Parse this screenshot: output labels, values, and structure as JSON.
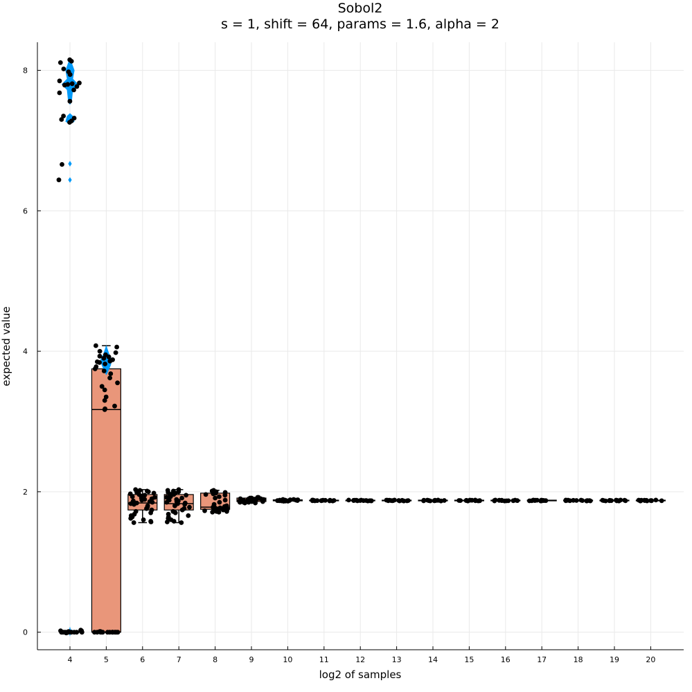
{
  "chart_data": {
    "type": "box",
    "title": "Sobol2",
    "subtitle": "s = 1, shift = 64, params = 1.6, alpha = 2",
    "xlabel": "log2 of samples",
    "ylabel": "expected value",
    "categories": [
      "4",
      "5",
      "6",
      "7",
      "8",
      "9",
      "10",
      "11",
      "12",
      "13",
      "14",
      "15",
      "16",
      "17",
      "18",
      "19",
      "20"
    ],
    "ylim": [
      -0.25,
      8.4
    ],
    "yticks": [
      0,
      2,
      4,
      6,
      8
    ],
    "grid": true,
    "legend": "none",
    "colors": {
      "box": "#e9967a",
      "violin": "#009af9",
      "points": "#000000",
      "grid": "#e9e9e9"
    },
    "boxes": [
      {
        "x": "4",
        "visible": false
      },
      {
        "x": "5",
        "q1": 0.0,
        "median": 3.17,
        "q3": 3.75,
        "whisker_low": 0.0,
        "whisker_high": 4.08
      },
      {
        "x": "6",
        "q1": 1.74,
        "median": 1.84,
        "q3": 1.96,
        "whisker_low": 1.56,
        "whisker_high": 2.03
      },
      {
        "x": "7",
        "q1": 1.74,
        "median": 1.83,
        "q3": 1.96,
        "whisker_low": 1.56,
        "whisker_high": 2.03
      },
      {
        "x": "8",
        "q1": 1.75,
        "median": 1.78,
        "q3": 1.98,
        "whisker_low": 1.71,
        "whisker_high": 2.02
      },
      {
        "x": "9",
        "q1": 1.86,
        "median": 1.88,
        "q3": 1.91,
        "whisker_low": 1.84,
        "whisker_high": 1.92
      },
      {
        "x": "10",
        "q1": 1.87,
        "median": 1.875,
        "q3": 1.885,
        "whisker_low": 1.865,
        "whisker_high": 1.89
      },
      {
        "x": "11",
        "q1": 1.87,
        "median": 1.875,
        "q3": 1.88,
        "whisker_low": 1.868,
        "whisker_high": 1.882
      },
      {
        "x": "12",
        "q1": 1.87,
        "median": 1.875,
        "q3": 1.88,
        "whisker_low": 1.868,
        "whisker_high": 1.882
      },
      {
        "x": "13",
        "q1": 1.87,
        "median": 1.875,
        "q3": 1.88,
        "whisker_low": 1.868,
        "whisker_high": 1.882
      },
      {
        "x": "14",
        "q1": 1.87,
        "median": 1.875,
        "q3": 1.88,
        "whisker_low": 1.868,
        "whisker_high": 1.882
      },
      {
        "x": "15",
        "q1": 1.87,
        "median": 1.875,
        "q3": 1.88,
        "whisker_low": 1.868,
        "whisker_high": 1.882
      },
      {
        "x": "16",
        "q1": 1.87,
        "median": 1.875,
        "q3": 1.88,
        "whisker_low": 1.868,
        "whisker_high": 1.882
      },
      {
        "x": "17",
        "q1": 1.87,
        "median": 1.875,
        "q3": 1.88,
        "whisker_low": 1.868,
        "whisker_high": 1.882
      },
      {
        "x": "18",
        "q1": 1.87,
        "median": 1.875,
        "q3": 1.88,
        "whisker_low": 1.868,
        "whisker_high": 1.882
      },
      {
        "x": "19",
        "q1": 1.87,
        "median": 1.875,
        "q3": 1.88,
        "whisker_low": 1.868,
        "whisker_high": 1.882
      },
      {
        "x": "20",
        "q1": 1.87,
        "median": 1.875,
        "q3": 1.88,
        "whisker_low": 1.868,
        "whisker_high": 1.882
      }
    ],
    "violins": [
      {
        "x": "4",
        "density": [
          [
            -0.02,
            0.05
          ],
          [
            0.0,
            0.22
          ],
          [
            0.02,
            0.3
          ],
          [
            0.04,
            0.05
          ],
          [
            6.44,
            0.12
          ],
          [
            6.67,
            0.12
          ],
          [
            7.27,
            0.3
          ],
          [
            7.35,
            0.2
          ],
          [
            7.55,
            0.12
          ],
          [
            7.72,
            0.2
          ],
          [
            7.8,
            0.55
          ],
          [
            7.88,
            0.2
          ],
          [
            8.0,
            0.3
          ],
          [
            8.12,
            0.1
          ]
        ]
      },
      {
        "x": "5",
        "density": [
          [
            3.7,
            0.1
          ],
          [
            3.8,
            0.3
          ],
          [
            3.88,
            0.38
          ],
          [
            3.96,
            0.2
          ],
          [
            4.05,
            0.06
          ]
        ]
      }
    ],
    "points": [
      {
        "x": "4",
        "y": [
          8.15,
          8.13,
          8.11,
          8.02,
          7.98,
          7.94,
          7.85,
          7.82,
          7.81,
          7.8,
          7.79,
          7.77,
          7.72,
          7.68,
          7.56,
          7.35,
          7.32,
          7.3,
          7.28,
          7.26,
          6.66,
          6.44,
          0.03,
          0.02,
          0.02,
          0.01,
          0.01,
          0.0,
          0.0,
          0.0,
          0.0,
          0.0,
          0.0,
          0.0,
          0.0,
          0.0,
          0.0,
          0.0,
          0.0,
          0.0,
          -0.01,
          -0.01
        ]
      },
      {
        "x": "5",
        "y": [
          4.08,
          4.06,
          4.0,
          3.98,
          3.95,
          3.93,
          3.92,
          3.9,
          3.88,
          3.86,
          3.85,
          3.84,
          3.82,
          3.78,
          3.75,
          3.72,
          3.68,
          3.62,
          3.55,
          3.5,
          3.45,
          3.35,
          3.3,
          3.22,
          3.18,
          3.17,
          0.01,
          0.01,
          0.0,
          0.0,
          0.0,
          0.0,
          0.0,
          0.0,
          0.0,
          0.0,
          0.0,
          0.0,
          0.0,
          0.0,
          0.0,
          0.0
        ]
      },
      {
        "x": "6",
        "y": [
          2.03,
          2.02,
          2.01,
          2.0,
          1.99,
          1.98,
          1.97,
          1.96,
          1.95,
          1.94,
          1.93,
          1.92,
          1.91,
          1.9,
          1.89,
          1.88,
          1.87,
          1.86,
          1.85,
          1.84,
          1.83,
          1.82,
          1.8,
          1.78,
          1.76,
          1.74,
          1.72,
          1.7,
          1.68,
          1.66,
          1.64,
          1.62,
          1.6,
          1.58,
          1.57,
          1.56
        ]
      },
      {
        "x": "7",
        "y": [
          2.03,
          2.02,
          2.01,
          2.0,
          1.99,
          1.98,
          1.97,
          1.96,
          1.95,
          1.94,
          1.93,
          1.92,
          1.91,
          1.9,
          1.89,
          1.88,
          1.87,
          1.86,
          1.85,
          1.84,
          1.83,
          1.82,
          1.8,
          1.78,
          1.76,
          1.74,
          1.72,
          1.7,
          1.68,
          1.66,
          1.64,
          1.62,
          1.6,
          1.58,
          1.57,
          1.56
        ]
      },
      {
        "x": "8",
        "y": [
          2.02,
          2.01,
          2.0,
          1.99,
          1.98,
          1.97,
          1.96,
          1.95,
          1.93,
          1.91,
          1.88,
          1.85,
          1.82,
          1.8,
          1.79,
          1.78,
          1.77,
          1.77,
          1.76,
          1.76,
          1.75,
          1.75,
          1.74,
          1.74,
          1.73,
          1.73,
          1.72,
          1.72,
          1.71,
          1.71
        ]
      },
      {
        "x": "9",
        "y": [
          1.92,
          1.92,
          1.91,
          1.91,
          1.9,
          1.9,
          1.9,
          1.89,
          1.89,
          1.89,
          1.88,
          1.88,
          1.88,
          1.88,
          1.87,
          1.87,
          1.87,
          1.86,
          1.86,
          1.86,
          1.85,
          1.85,
          1.85,
          1.84,
          1.84
        ]
      },
      {
        "x": "10",
        "y": [
          1.89,
          1.89,
          1.885,
          1.885,
          1.88,
          1.88,
          1.88,
          1.878,
          1.876,
          1.875,
          1.875,
          1.874,
          1.872,
          1.87,
          1.87,
          1.868,
          1.866,
          1.865
        ]
      },
      {
        "x": "11",
        "y": [
          1.881,
          1.88,
          1.879,
          1.878,
          1.877,
          1.876,
          1.875,
          1.875,
          1.874,
          1.873,
          1.872,
          1.871,
          1.87,
          1.869
        ]
      },
      {
        "x": "12",
        "y": [
          1.881,
          1.88,
          1.879,
          1.878,
          1.877,
          1.876,
          1.875,
          1.875,
          1.874,
          1.873,
          1.872,
          1.871,
          1.87,
          1.869
        ]
      },
      {
        "x": "13",
        "y": [
          1.881,
          1.88,
          1.879,
          1.878,
          1.877,
          1.876,
          1.875,
          1.875,
          1.874,
          1.873,
          1.872,
          1.871,
          1.87,
          1.869
        ]
      },
      {
        "x": "14",
        "y": [
          1.881,
          1.88,
          1.879,
          1.878,
          1.877,
          1.876,
          1.875,
          1.875,
          1.874,
          1.873,
          1.872,
          1.871,
          1.87,
          1.869
        ]
      },
      {
        "x": "15",
        "y": [
          1.881,
          1.88,
          1.879,
          1.878,
          1.877,
          1.876,
          1.875,
          1.875,
          1.874,
          1.873,
          1.872,
          1.871,
          1.87,
          1.869
        ]
      },
      {
        "x": "16",
        "y": [
          1.881,
          1.88,
          1.879,
          1.878,
          1.877,
          1.876,
          1.875,
          1.875,
          1.874,
          1.873,
          1.872,
          1.871,
          1.87,
          1.869
        ]
      },
      {
        "x": "17",
        "y": [
          1.881,
          1.88,
          1.879,
          1.878,
          1.877,
          1.876,
          1.875,
          1.875,
          1.874,
          1.873,
          1.872,
          1.871,
          1.87,
          1.869
        ]
      },
      {
        "x": "18",
        "y": [
          1.881,
          1.88,
          1.879,
          1.878,
          1.877,
          1.876,
          1.875,
          1.875,
          1.874,
          1.873,
          1.872,
          1.871,
          1.87,
          1.869
        ]
      },
      {
        "x": "19",
        "y": [
          1.881,
          1.88,
          1.879,
          1.878,
          1.877,
          1.876,
          1.875,
          1.875,
          1.874,
          1.873,
          1.872,
          1.871,
          1.87,
          1.869
        ]
      },
      {
        "x": "20",
        "y": [
          1.881,
          1.88,
          1.879,
          1.878,
          1.877,
          1.876,
          1.875,
          1.875,
          1.874,
          1.873,
          1.872,
          1.871,
          1.87,
          1.869
        ]
      }
    ]
  }
}
